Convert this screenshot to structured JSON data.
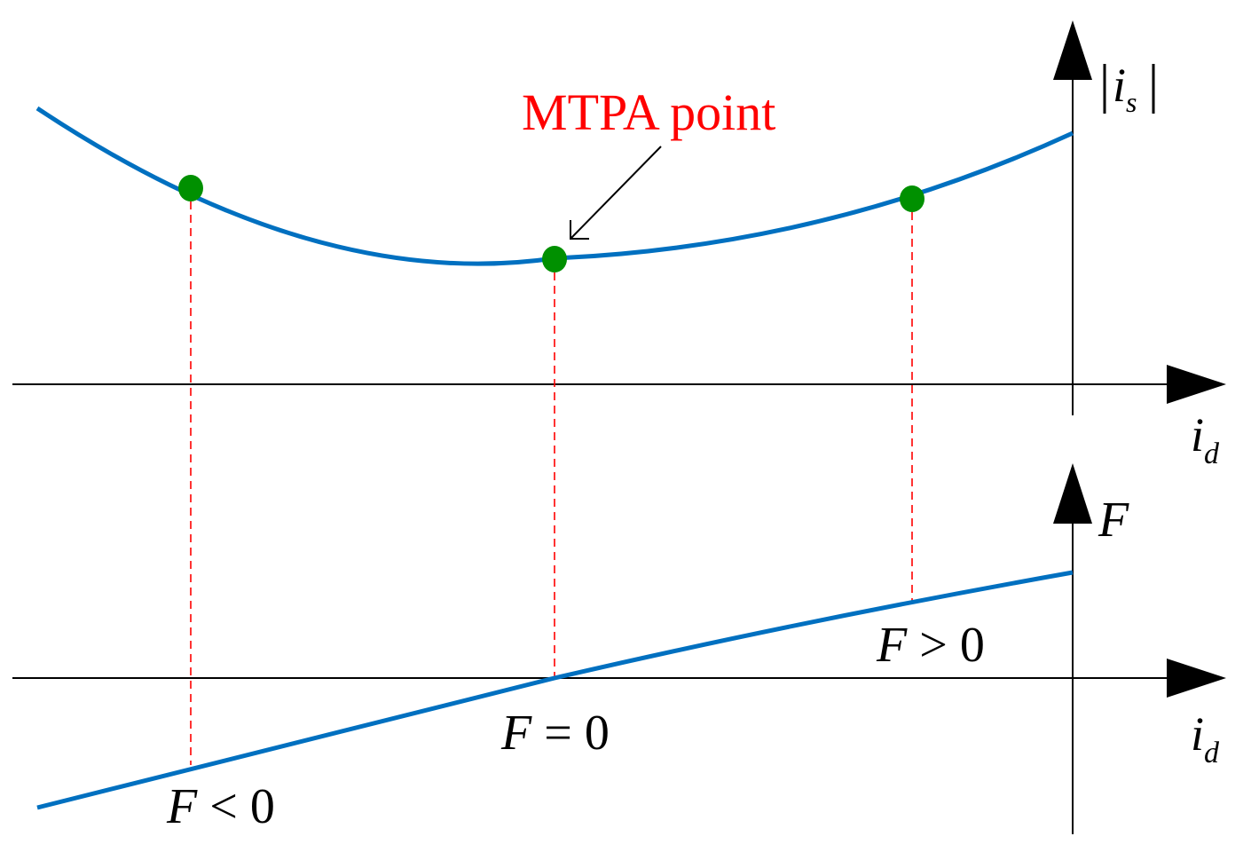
{
  "colors": {
    "curve": "#0070c0",
    "marker": "#009000",
    "guide": "#ff0000",
    "annotation": "#ff0000",
    "axis": "#000000"
  },
  "top_plot": {
    "y_axis_label": {
      "symbol": "i",
      "subscript": "s",
      "enclosure": "absolute-value bars"
    },
    "x_axis_label": {
      "symbol": "i",
      "subscript": "d"
    },
    "annotation": "MTPA point"
  },
  "bottom_plot": {
    "y_axis_label": "F",
    "x_axis_label": {
      "symbol": "i",
      "subscript": "d"
    },
    "labels": {
      "negative": {
        "symbol": "F",
        "operator": "<",
        "value": "0"
      },
      "zero": {
        "symbol": "F",
        "operator": "=",
        "value": "0"
      },
      "positive": {
        "symbol": "F",
        "operator": ">",
        "value": "0"
      }
    }
  },
  "icons": {
    "x_axis_arrow": "arrowhead-right-icon",
    "y_axis_arrow": "arrowhead-up-icon",
    "pointer_arrow": "pointer-arrow-icon"
  }
}
